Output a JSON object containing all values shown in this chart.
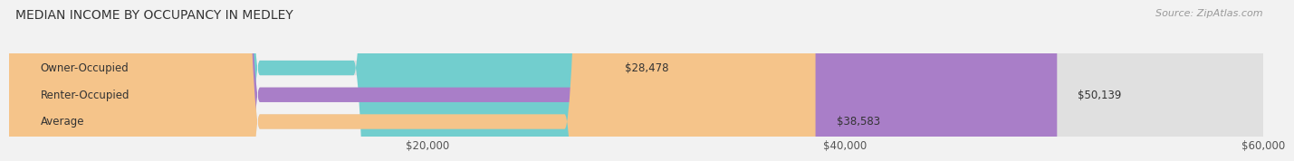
{
  "title": "MEDIAN INCOME BY OCCUPANCY IN MEDLEY",
  "source": "Source: ZipAtlas.com",
  "categories": [
    "Owner-Occupied",
    "Renter-Occupied",
    "Average"
  ],
  "values": [
    28478,
    50139,
    38583
  ],
  "bar_colors": [
    "#72cece",
    "#a97ec8",
    "#f5c48a"
  ],
  "bar_labels": [
    "$28,478",
    "$50,139",
    "$38,583"
  ],
  "xlim": [
    0,
    60000
  ],
  "xtick_vals": [
    20000,
    40000,
    60000
  ],
  "xtick_labels": [
    "$20,000",
    "$40,000",
    "$60,000"
  ],
  "background_color": "#f2f2f2",
  "bar_bg_color": "#e0e0e0",
  "title_fontsize": 10,
  "label_fontsize": 8.5,
  "source_fontsize": 8
}
